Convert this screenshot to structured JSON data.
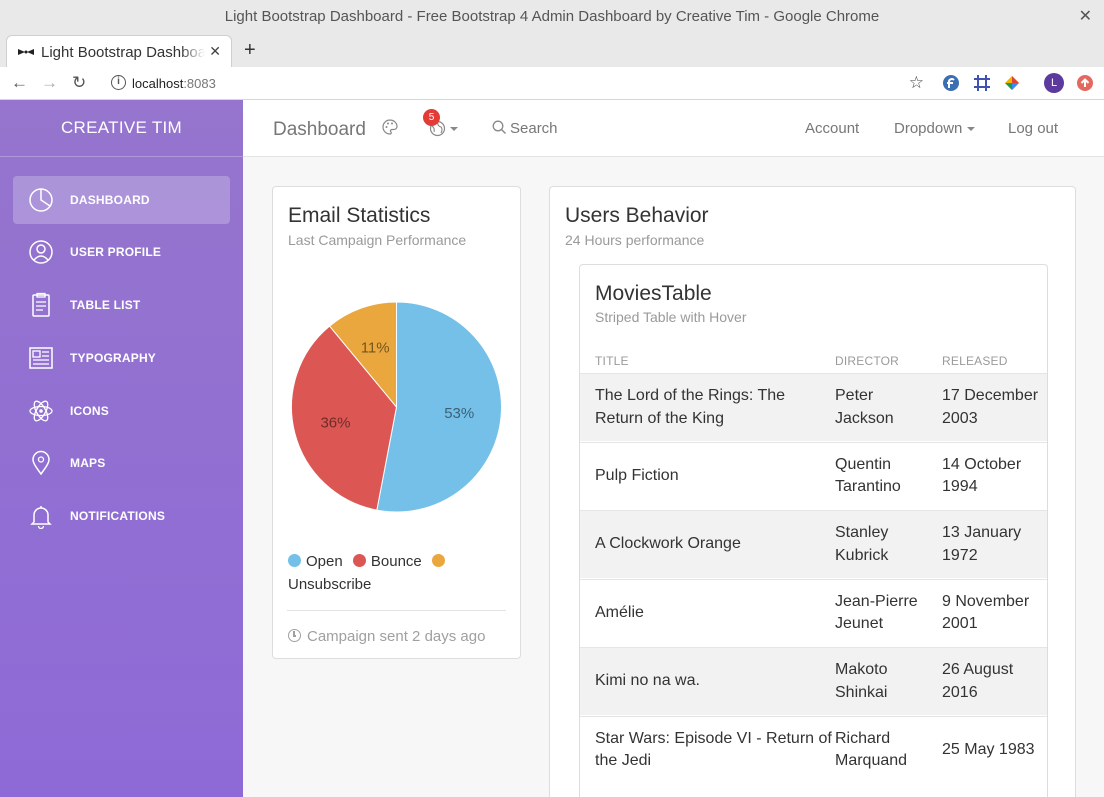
{
  "browser": {
    "window_title": "Light Bootstrap Dashboard - Free Bootstrap 4 Admin Dashboard by Creative Tim - Google Chrome",
    "tab_title": "Light Bootstrap Dashboard - Free Bootstrap 4 Admin Dashboard by Creative Tim",
    "url_host": "localhost",
    "url_port": ":8083",
    "profile_initial": "L"
  },
  "sidebar": {
    "brand": "CREATIVE TIM",
    "items": [
      {
        "label": "DASHBOARD",
        "icon": "chart-pie-icon",
        "active": true
      },
      {
        "label": "USER PROFILE",
        "icon": "user-circle-icon",
        "active": false
      },
      {
        "label": "TABLE LIST",
        "icon": "clipboard-icon",
        "active": false
      },
      {
        "label": "TYPOGRAPHY",
        "icon": "newspaper-icon",
        "active": false
      },
      {
        "label": "ICONS",
        "icon": "atom-icon",
        "active": false
      },
      {
        "label": "MAPS",
        "icon": "map-pin-icon",
        "active": false
      },
      {
        "label": "NOTIFICATIONS",
        "icon": "bell-icon",
        "active": false
      }
    ]
  },
  "topnav": {
    "title": "Dashboard",
    "notification_count": "5",
    "search_label": "Search",
    "account": "Account",
    "dropdown": "Dropdown",
    "logout": "Log out"
  },
  "email_card": {
    "title": "Email Statistics",
    "subtitle": "Last Campaign Performance",
    "legend": [
      "Open",
      "Bounce",
      "Unsubscribe"
    ],
    "footer": "Campaign sent 2 days ago"
  },
  "chart_data": {
    "type": "pie",
    "categories": [
      "Open",
      "Bounce",
      "Unsubscribe"
    ],
    "values": [
      53,
      36,
      11
    ],
    "labels": [
      "53%",
      "36%",
      "11%"
    ],
    "colors": [
      "#74c0e8",
      "#dc5753",
      "#e9a73d"
    ]
  },
  "users_card": {
    "title": "Users Behavior",
    "subtitle": "24 Hours performance",
    "table": {
      "title": "MoviesTable",
      "subtitle": "Striped Table with Hover",
      "headers": [
        "TITLE",
        "DIRECTOR",
        "RELEASED"
      ],
      "rows": [
        {
          "title": [
            "The Lord of the Rings: The",
            "Return of the King"
          ],
          "director": [
            "Peter",
            "Jackson"
          ],
          "released": [
            "17 December",
            "2003"
          ]
        },
        {
          "title": [
            "Pulp Fiction"
          ],
          "director": [
            "Quentin",
            "Tarantino"
          ],
          "released": [
            "14 October",
            "1994"
          ]
        },
        {
          "title": [
            "A Clockwork Orange"
          ],
          "director": [
            "Stanley",
            "Kubrick"
          ],
          "released": [
            "13 January",
            "1972"
          ]
        },
        {
          "title": [
            "Amélie"
          ],
          "director": [
            "Jean-Pierre",
            "Jeunet"
          ],
          "released": [
            "9 November",
            "2001"
          ]
        },
        {
          "title": [
            "Kimi no na wa."
          ],
          "director": [
            "Makoto",
            "Shinkai"
          ],
          "released": [
            "26 August",
            "2016"
          ]
        },
        {
          "title": [
            "Star Wars: Episode VI - Return of",
            "the Jedi"
          ],
          "director": [
            "Richard",
            "Marquand"
          ],
          "released": [
            "25 May 1983"
          ]
        }
      ]
    }
  },
  "colors": {
    "sidebar_top": "#9575cd",
    "sidebar_bottom": "#8e6ad7",
    "badge": "#e33b36"
  }
}
